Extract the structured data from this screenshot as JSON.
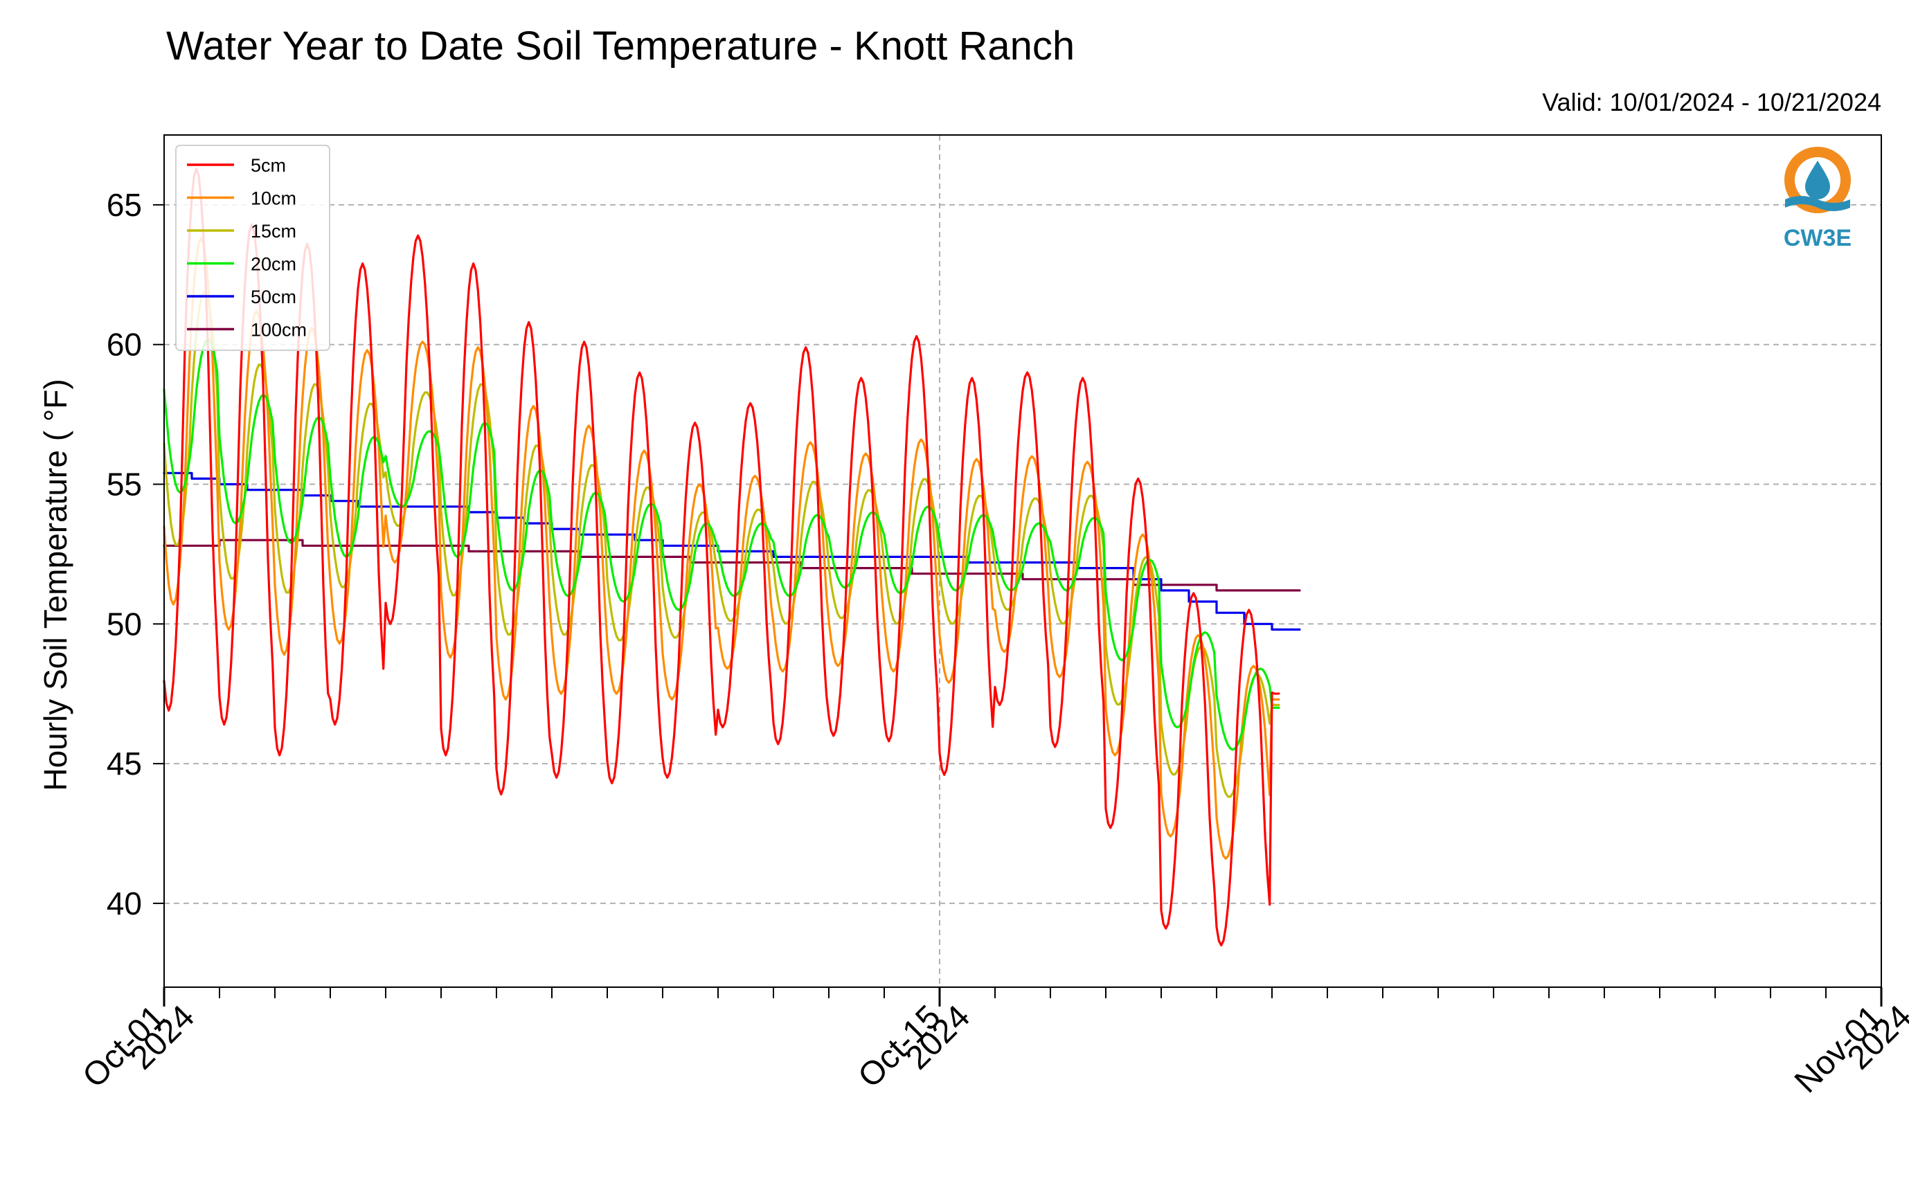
{
  "chart_data": {
    "type": "line",
    "title": "Water Year to Date Soil Temperature - Knott Ranch",
    "subtitle": "Valid: 10/01/2024 - 10/21/2024",
    "xlabel": "",
    "ylabel": "Hourly Soil Temperature ( °F)",
    "ylim": [
      37,
      67.5
    ],
    "xlim": [
      "2024-10-01 00:00",
      "2024-11-01 00:00"
    ],
    "yticks": [
      40,
      45,
      50,
      55,
      60,
      65
    ],
    "xticks": [
      {
        "date": "2024-10-01",
        "line1": "Oct-01",
        "line2": "2024"
      },
      {
        "date": "2024-10-15",
        "line1": "Oct-15",
        "line2": "2024"
      },
      {
        "date": "2024-11-01",
        "line1": "Nov-01",
        "line2": "2024"
      }
    ],
    "grid": true,
    "legend_position": "top-left",
    "logo_text": "CW3E",
    "series": [
      {
        "name": "5cm",
        "color": "#ff0000",
        "daily_max": [
          66.3,
          64.3,
          63.6,
          62.9,
          63.9,
          62.9,
          60.8,
          60.1,
          59.0,
          57.2,
          57.9,
          59.9,
          58.8,
          60.3,
          58.8,
          59.0,
          58.8,
          55.2,
          51.1,
          50.5,
          48.3
        ],
        "daily_min": [
          46.9,
          46.4,
          45.3,
          46.4,
          50.0,
          45.3,
          43.9,
          44.5,
          44.3,
          44.5,
          46.3,
          45.7,
          46.0,
          45.8,
          44.6,
          47.1,
          45.6,
          42.7,
          39.1,
          38.5,
          47.5
        ]
      },
      {
        "name": "10cm",
        "color": "#ff8c00",
        "daily_max": [
          63.8,
          61.2,
          60.6,
          59.8,
          60.1,
          59.9,
          57.8,
          57.1,
          56.2,
          55.0,
          55.3,
          56.5,
          56.1,
          56.6,
          55.9,
          56.0,
          55.8,
          53.2,
          49.6,
          48.5,
          47.3
        ],
        "daily_min": [
          50.7,
          49.8,
          48.9,
          49.3,
          52.2,
          48.8,
          47.3,
          47.5,
          47.5,
          47.3,
          48.4,
          48.3,
          48.5,
          48.3,
          47.9,
          49.0,
          48.1,
          45.3,
          42.4,
          41.6,
          47.3
        ]
      },
      {
        "name": "15cm",
        "color": "#bdbd00",
        "daily_max": [
          61.9,
          59.3,
          58.6,
          57.9,
          58.3,
          58.6,
          56.4,
          55.7,
          54.9,
          54.0,
          54.1,
          55.1,
          54.8,
          55.2,
          54.6,
          54.5,
          54.6,
          52.4,
          49.2,
          48.2,
          47.1
        ],
        "daily_min": [
          52.8,
          51.6,
          51.1,
          51.3,
          53.5,
          51.0,
          49.6,
          49.6,
          49.4,
          49.5,
          50.1,
          50.0,
          50.2,
          50.0,
          50.0,
          50.5,
          50.0,
          47.1,
          44.6,
          43.8,
          47.1
        ]
      },
      {
        "name": "20cm",
        "color": "#00ee00",
        "daily_max": [
          60.2,
          58.2,
          57.4,
          56.7,
          56.9,
          57.2,
          55.5,
          54.7,
          54.3,
          53.6,
          53.6,
          53.9,
          54.0,
          54.2,
          53.9,
          53.6,
          53.8,
          52.3,
          49.7,
          48.4,
          47.0
        ],
        "daily_min": [
          54.7,
          53.6,
          52.9,
          52.4,
          54.2,
          52.4,
          51.2,
          51.0,
          50.8,
          50.5,
          51.0,
          51.0,
          51.3,
          51.1,
          51.2,
          51.2,
          51.2,
          48.7,
          46.3,
          45.5,
          47.0
        ]
      },
      {
        "name": "50cm",
        "color": "#0000ee",
        "daily_mean": [
          55.3,
          55.0,
          54.7,
          54.4,
          54.1,
          54.1,
          53.8,
          53.4,
          53.1,
          52.8,
          52.6,
          52.4,
          52.4,
          52.3,
          52.3,
          52.2,
          52.1,
          52.0,
          51.1,
          50.4,
          49.8
        ]
      },
      {
        "name": "100cm",
        "color": "#800040",
        "daily_mean": [
          52.7,
          52.9,
          52.9,
          52.8,
          52.7,
          52.7,
          52.6,
          52.5,
          52.4,
          52.3,
          52.2,
          52.1,
          52.0,
          51.9,
          51.8,
          51.7,
          51.6,
          51.5,
          51.4,
          51.2,
          51.1
        ]
      }
    ]
  }
}
